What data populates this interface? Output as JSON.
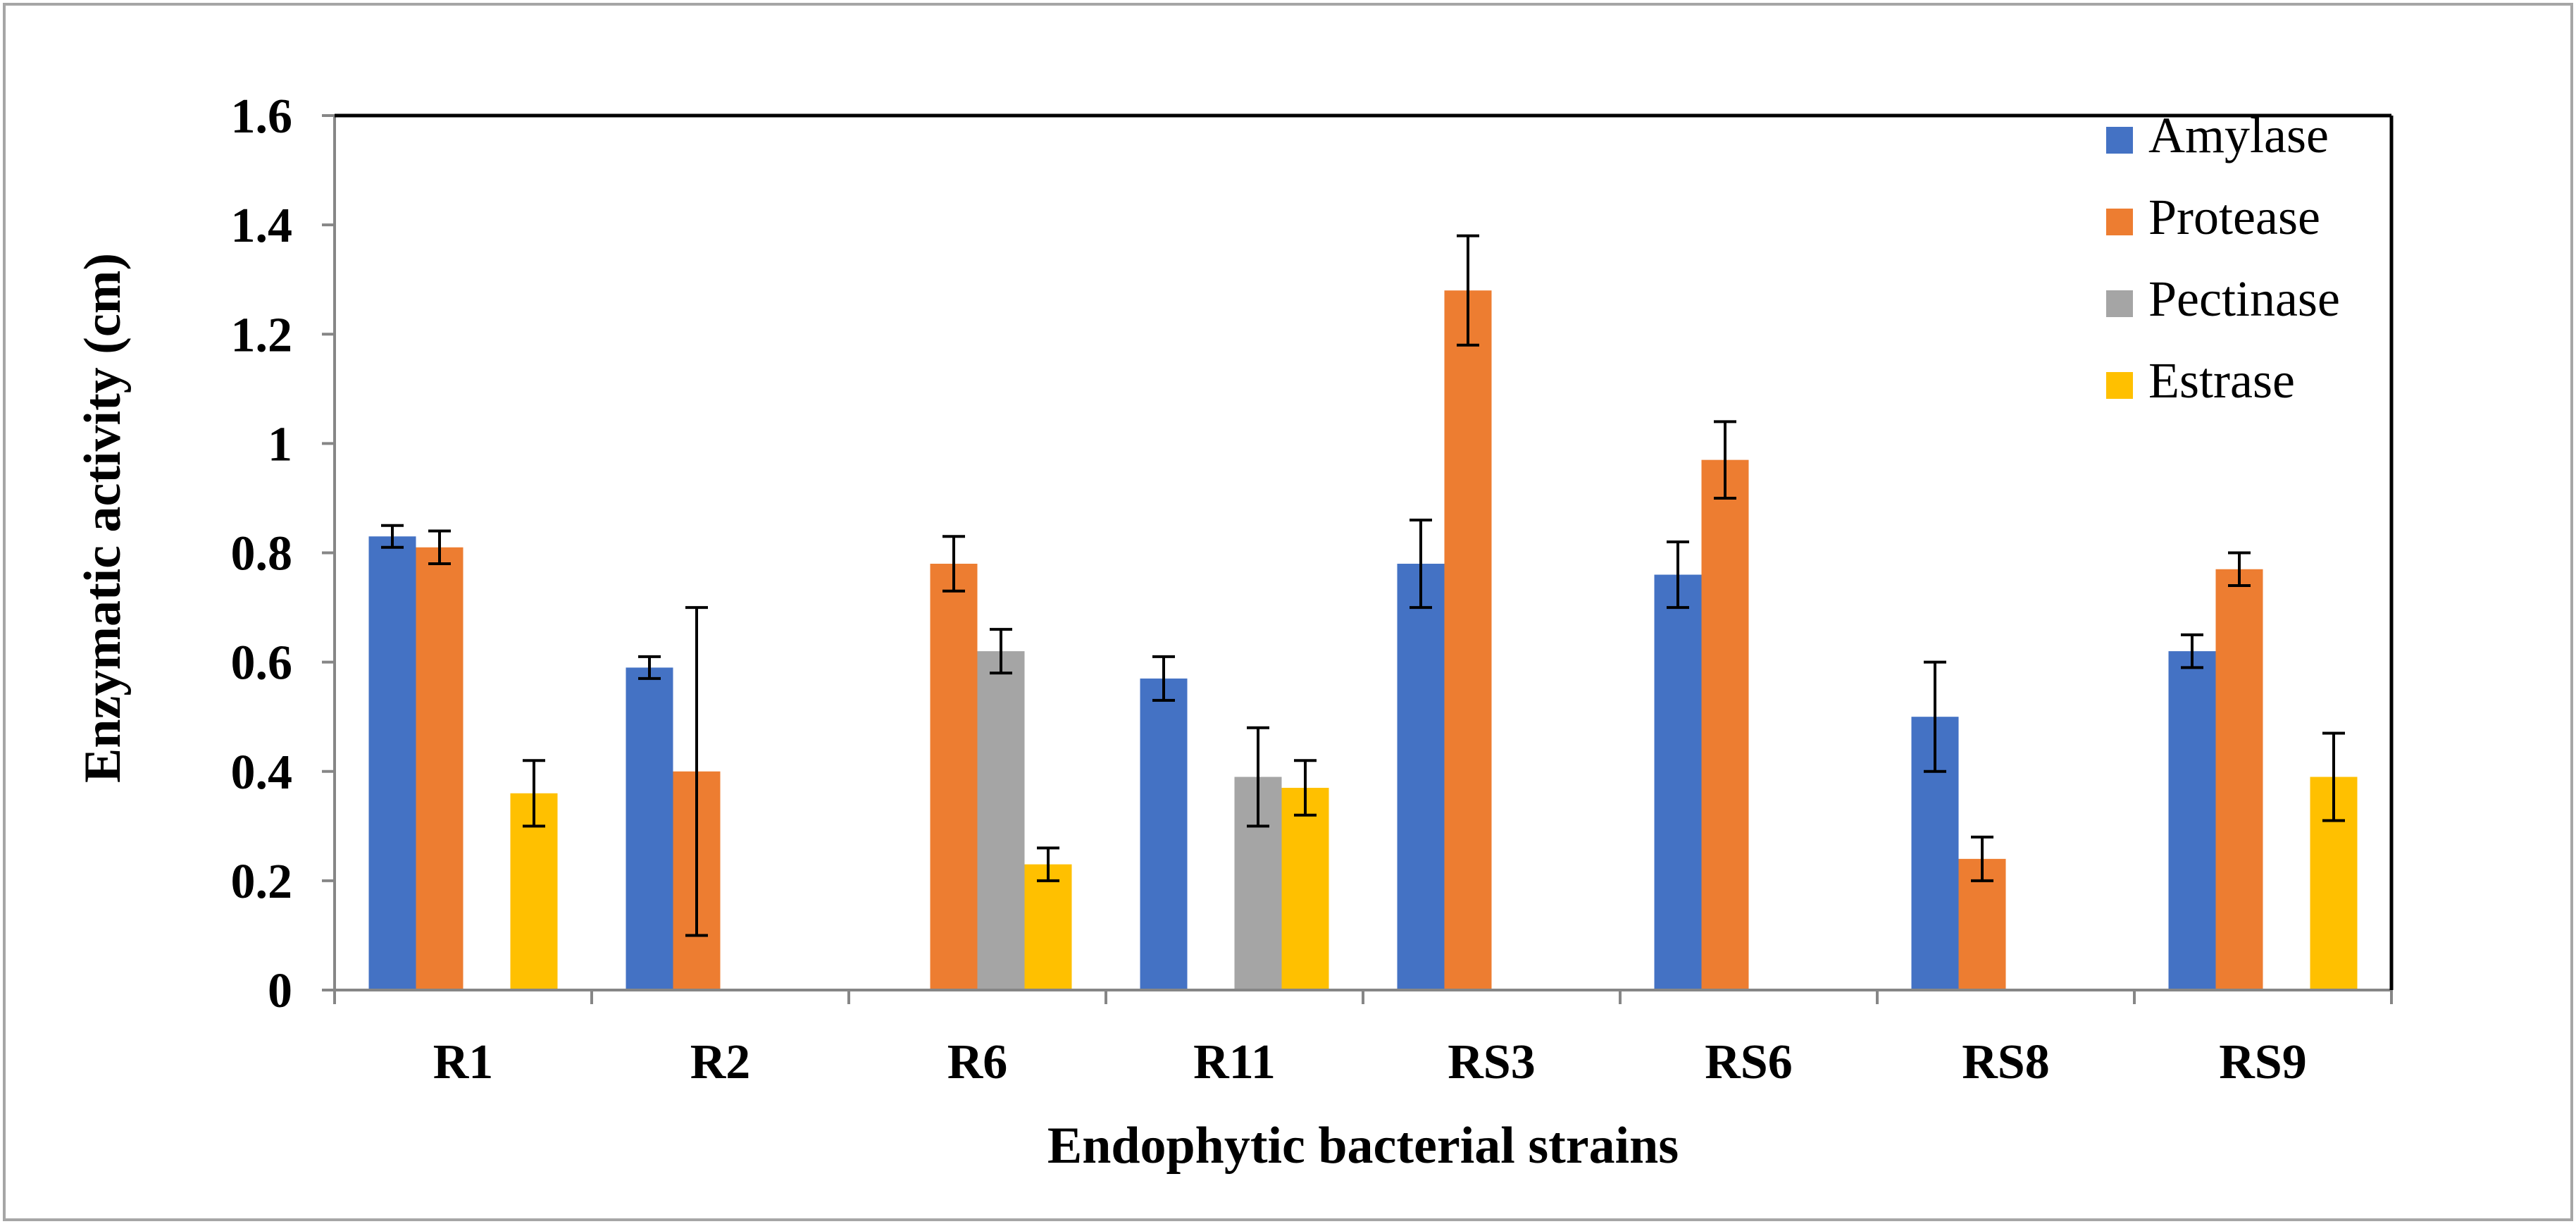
{
  "chart_data": {
    "type": "bar",
    "title": "",
    "xlabel": "Endophytic bacterial strains",
    "ylabel": "Enzymatic activity (cm)",
    "ylim": [
      0,
      1.6
    ],
    "yticks": [
      0,
      0.2,
      0.4,
      0.6,
      0.8,
      1,
      1.2,
      1.4,
      1.6
    ],
    "ytick_labels": [
      "0",
      "0.2",
      "0.4",
      "0.6",
      "0.8",
      "1",
      "1.2",
      "1.4",
      "1.6"
    ],
    "categories": [
      "R1",
      "R2",
      "R6",
      "R11",
      "RS3",
      "RS6",
      "RS8",
      "RS9"
    ],
    "grid": false,
    "legend_position": "top-right",
    "series": [
      {
        "name": "Amylase",
        "color": "#4472C4",
        "values": [
          0.83,
          0.59,
          null,
          0.57,
          0.78,
          0.76,
          0.5,
          0.62
        ],
        "errors": [
          0.02,
          0.02,
          null,
          0.04,
          0.08,
          0.06,
          0.1,
          0.03
        ]
      },
      {
        "name": "Protease",
        "color": "#ED7D31",
        "values": [
          0.81,
          0.4,
          0.78,
          null,
          1.28,
          0.97,
          0.24,
          0.77
        ],
        "errors": [
          0.03,
          0.3,
          0.05,
          null,
          0.1,
          0.07,
          0.04,
          0.03
        ]
      },
      {
        "name": "Pectinase",
        "color": "#A5A5A5",
        "values": [
          null,
          null,
          0.62,
          0.39,
          null,
          null,
          null,
          null
        ],
        "errors": [
          null,
          null,
          0.04,
          0.09,
          null,
          null,
          null,
          null
        ]
      },
      {
        "name": "Estrase",
        "color": "#FFC000",
        "values": [
          0.36,
          null,
          0.23,
          0.37,
          null,
          null,
          null,
          0.39
        ],
        "errors": [
          0.06,
          null,
          0.03,
          0.05,
          null,
          null,
          null,
          0.08
        ]
      }
    ]
  }
}
